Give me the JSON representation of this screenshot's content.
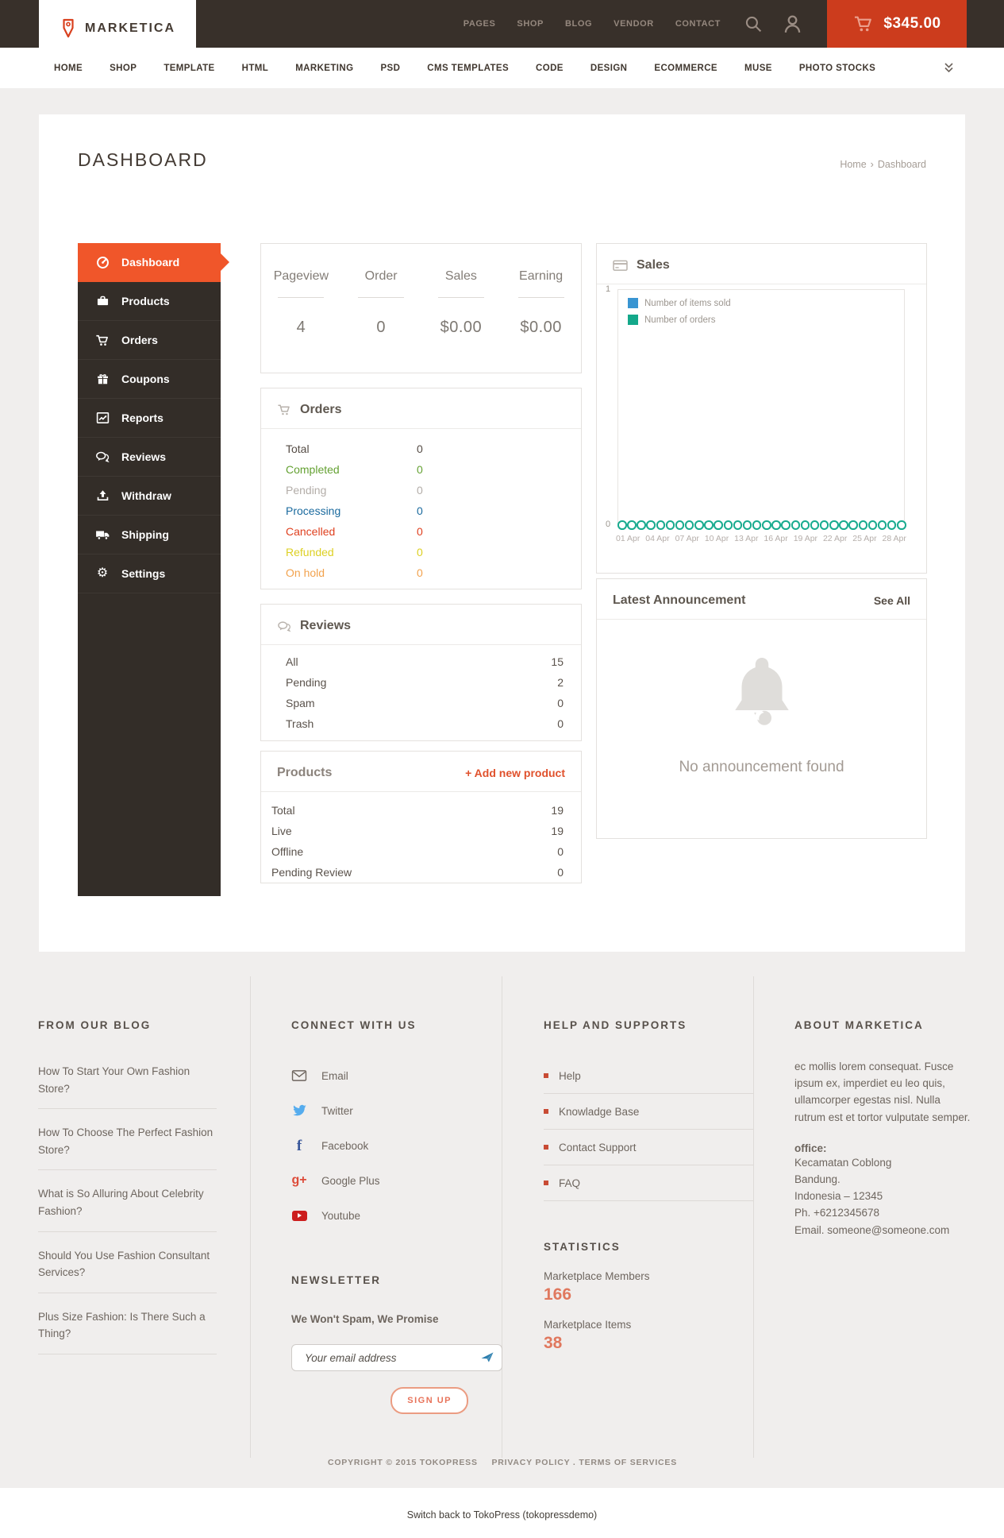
{
  "header": {
    "brand": "MARKETICA",
    "top_nav": [
      "PAGES",
      "SHOP",
      "BLOG",
      "VENDOR",
      "CONTACT"
    ],
    "cart_total": "$345.00",
    "accent_color": "#cc3c1d"
  },
  "main_nav": [
    "HOME",
    "SHOP",
    "TEMPLATE",
    "HTML",
    "MARKETING",
    "PSD",
    "CMS TEMPLATES",
    "CODE",
    "DESIGN",
    "ECOMMERCE",
    "MUSE",
    "PHOTO STOCKS"
  ],
  "page": {
    "title": "DASHBOARD",
    "breadcrumb_home": "Home",
    "breadcrumb_sep": "›",
    "breadcrumb_current": "Dashboard"
  },
  "sidebar": {
    "active_item": "Dashboard",
    "active_color": "#f0562a",
    "items": [
      {
        "label": "Dashboard"
      },
      {
        "label": "Products"
      },
      {
        "label": "Orders"
      },
      {
        "label": "Coupons"
      },
      {
        "label": "Reports"
      },
      {
        "label": "Reviews"
      },
      {
        "label": "Withdraw"
      },
      {
        "label": "Shipping"
      },
      {
        "label": "Settings"
      }
    ]
  },
  "stats": [
    {
      "label": "Pageview",
      "value": "4"
    },
    {
      "label": "Order",
      "value": "0"
    },
    {
      "label": "Sales",
      "value": "$0.00"
    },
    {
      "label": "Earning",
      "value": "$0.00"
    }
  ],
  "orders_panel": {
    "title": "Orders",
    "rows": [
      {
        "label": "Total",
        "value": "0",
        "color": "#554c45"
      },
      {
        "label": "Completed",
        "value": "0",
        "color": "#64a132"
      },
      {
        "label": "Pending",
        "value": "0",
        "color": "#b3ada8"
      },
      {
        "label": "Processing",
        "value": "0",
        "color": "#1a6a9e"
      },
      {
        "label": "Cancelled",
        "value": "0",
        "color": "#df3f1e"
      },
      {
        "label": "Refunded",
        "value": "0",
        "color": "#ddd023"
      },
      {
        "label": "On hold",
        "value": "0",
        "color": "#f2a24d"
      }
    ]
  },
  "sales_panel": {
    "title": "Sales",
    "y_max": "1",
    "y_min": "0",
    "point_color": "#19ab8f",
    "legend": [
      {
        "label": "Number of items sold",
        "color": "#3995d2"
      },
      {
        "label": "Number of orders",
        "color": "#14a88a"
      }
    ],
    "x_ticks": [
      "01 Apr",
      "04 Apr",
      "07 Apr",
      "10 Apr",
      "13 Apr",
      "16 Apr",
      "19 Apr",
      "22 Apr",
      "25 Apr",
      "28 Apr"
    ],
    "zero_points": 30,
    "chart_data": {
      "type": "line",
      "x": [
        "01 Apr",
        "02 Apr",
        "03 Apr",
        "04 Apr",
        "05 Apr",
        "06 Apr",
        "07 Apr",
        "08 Apr",
        "09 Apr",
        "10 Apr",
        "11 Apr",
        "12 Apr",
        "13 Apr",
        "14 Apr",
        "15 Apr",
        "16 Apr",
        "17 Apr",
        "18 Apr",
        "19 Apr",
        "20 Apr",
        "21 Apr",
        "22 Apr",
        "23 Apr",
        "24 Apr",
        "25 Apr",
        "26 Apr",
        "27 Apr",
        "28 Apr",
        "29 Apr",
        "30 Apr"
      ],
      "series": [
        {
          "name": "Number of items sold",
          "values": [
            0,
            0,
            0,
            0,
            0,
            0,
            0,
            0,
            0,
            0,
            0,
            0,
            0,
            0,
            0,
            0,
            0,
            0,
            0,
            0,
            0,
            0,
            0,
            0,
            0,
            0,
            0,
            0,
            0,
            0
          ]
        },
        {
          "name": "Number of orders",
          "values": [
            0,
            0,
            0,
            0,
            0,
            0,
            0,
            0,
            0,
            0,
            0,
            0,
            0,
            0,
            0,
            0,
            0,
            0,
            0,
            0,
            0,
            0,
            0,
            0,
            0,
            0,
            0,
            0,
            0,
            0
          ]
        }
      ],
      "ylim": [
        0,
        1
      ],
      "legend_position": "top-left",
      "grid": false
    }
  },
  "reviews_panel": {
    "title": "Reviews",
    "rows": [
      {
        "label": "All",
        "value": "15"
      },
      {
        "label": "Pending",
        "value": "2"
      },
      {
        "label": "Spam",
        "value": "0"
      },
      {
        "label": "Trash",
        "value": "0"
      }
    ]
  },
  "products_panel": {
    "title": "Products",
    "action": "+ Add new product",
    "rows": [
      {
        "label": "Total",
        "value": "19"
      },
      {
        "label": "Live",
        "value": "19"
      },
      {
        "label": "Offline",
        "value": "0"
      },
      {
        "label": "Pending Review",
        "value": "0"
      }
    ]
  },
  "announcement_panel": {
    "title": "Latest Announcement",
    "action": "See All",
    "empty_message": "No announcement found"
  },
  "footer": {
    "blog": {
      "heading": "FROM OUR BLOG",
      "items": [
        "How To Start Your Own Fashion Store?",
        "How To Choose The Perfect Fashion Store?",
        "What is So Alluring About Celebrity Fashion?",
        "Should You Use Fashion Consultant Services?",
        "Plus Size Fashion: Is There Such a Thing?"
      ]
    },
    "connect": {
      "heading": "CONNECT WITH US",
      "items": [
        {
          "label": "Email",
          "icon": "email-icon"
        },
        {
          "label": "Twitter",
          "icon": "twitter-icon"
        },
        {
          "label": "Facebook",
          "icon": "facebook-icon"
        },
        {
          "label": "Google Plus",
          "icon": "google-plus-icon"
        },
        {
          "label": "Youtube",
          "icon": "youtube-icon"
        }
      ]
    },
    "newsletter": {
      "heading": "NEWSLETTER",
      "tagline": "We Won't Spam, We Promise",
      "placeholder": "Your email address",
      "button": "SIGN UP"
    },
    "help": {
      "heading": "HELP AND SUPPORTS",
      "items": [
        "Help",
        "Knowladge Base",
        "Contact Support",
        "FAQ"
      ]
    },
    "statistics": {
      "heading": "STATISTICS",
      "items": [
        {
          "label": "Marketplace Members",
          "value": "166"
        },
        {
          "label": "Marketplace Items",
          "value": "38"
        }
      ]
    },
    "about": {
      "heading": "ABOUT MARKETICA",
      "text": "ec mollis lorem consequat. Fusce ipsum ex, imperdiet eu leo quis, ullamcorper egestas nisl. Nulla rutrum est et tortor vulputate semper.",
      "office_label": "office:",
      "address_lines": [
        "Kecamatan Coblong",
        "Bandung.",
        "Indonesia – 12345",
        "Ph. +6212345678",
        "Email. someone@someone.com"
      ]
    },
    "copyright": "COPYRIGHT © 2015 TOKOPRESS",
    "privacy": "PRIVACY POLICY",
    "dot_sep": ".",
    "terms": "TERMS OF SERVICES"
  },
  "switch_bar": "Switch back to TokoPress (tokopressdemo)"
}
